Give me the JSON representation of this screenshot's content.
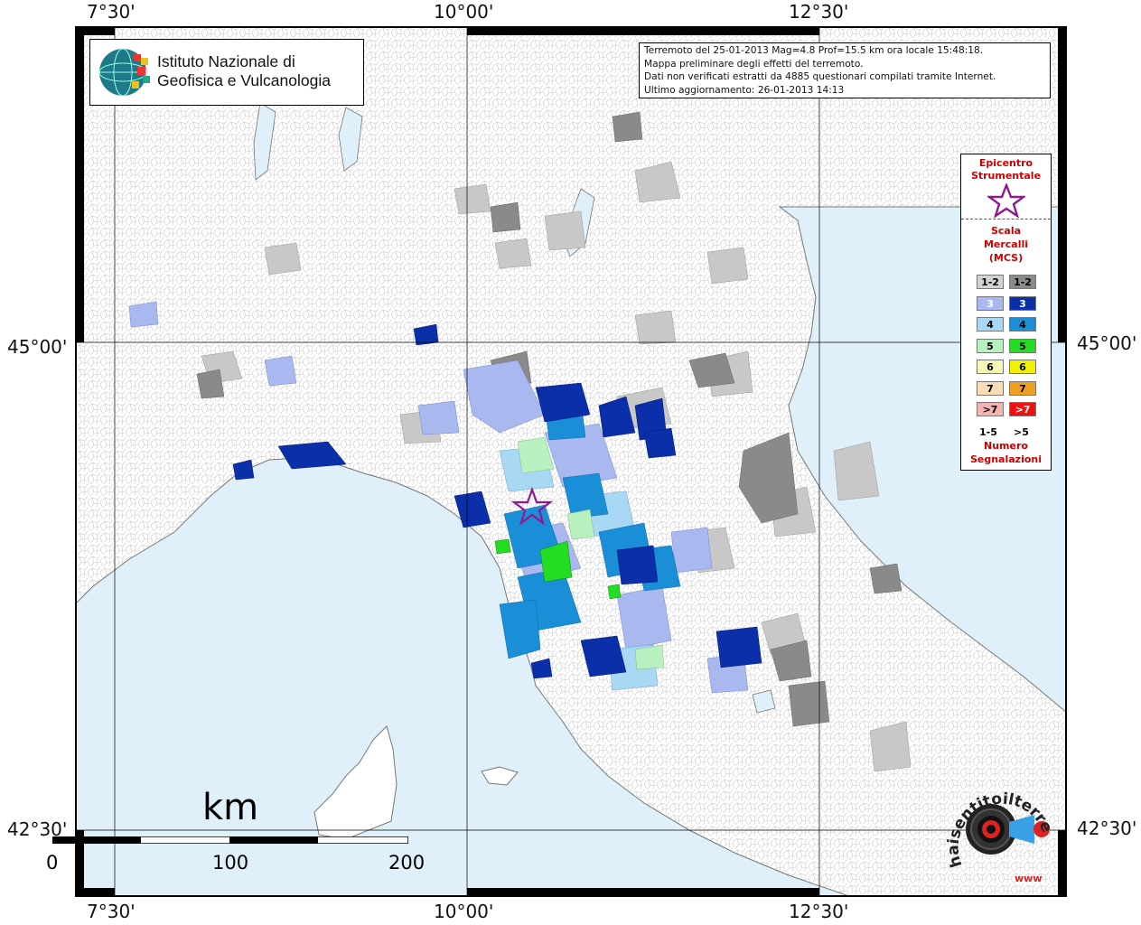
{
  "header": {
    "institute_name_line1": "Istituto Nazionale di",
    "institute_name_line2": "Geofisica e Vulcanologia"
  },
  "info_box": {
    "line1": "Terremoto del 25-01-2013 Mag=4.8 Prof=15.5 km ora locale 15:48:18.",
    "line2": "Mappa preliminare degli effetti del terremoto.",
    "line3": "Dati non verificati estratti da 4885 questionari compilati tramite Internet.",
    "line4": "Ultimo aggiornamento: 26-01-2013 14:13"
  },
  "axes": {
    "lon_labels": [
      "7°30'",
      "10°00'",
      "12°30'"
    ],
    "lat_labels": [
      "45°00'",
      "42°30'"
    ]
  },
  "legend": {
    "epicenter_title_line1": "Epicentro",
    "epicenter_title_line2": "Strumentale",
    "scale_title_line1": "Scala",
    "scale_title_line2": "Mercalli",
    "scale_title_line3": "(MCS)",
    "rows": [
      {
        "label_low": "1-2",
        "label_high": "1-2",
        "color_low": "#d3d3d3",
        "color_high": "#8a8a8a"
      },
      {
        "label_low": "3",
        "label_high": "3",
        "color_low": "#aab8f0",
        "color_high": "#0a2fa8"
      },
      {
        "label_low": "4",
        "label_high": "4",
        "color_low": "#a8d8f4",
        "color_high": "#1a8fd8"
      },
      {
        "label_low": "5",
        "label_high": "5",
        "color_low": "#b8f0c0",
        "color_high": "#22dd22"
      },
      {
        "label_low": "6",
        "label_high": "6",
        "color_low": "#f6f6b8",
        "color_high": "#f0f000"
      },
      {
        "label_low": "7",
        "label_high": "7",
        "color_low": "#f8dcb4",
        "color_high": "#f0a020"
      },
      {
        "label_low": ">7",
        "label_high": ">7",
        "color_low": "#f4b4b4",
        "color_high": "#ee1111"
      }
    ],
    "count_low": "1-5",
    "count_high": ">5",
    "count_title_line1": "Numero",
    "count_title_line2": "Segnalazioni"
  },
  "scale_bar": {
    "unit": "km",
    "ticks": [
      "0",
      "100",
      "200"
    ]
  },
  "badge": {
    "text_main": "haisentitoilterremoto.it",
    "text_www": "www"
  },
  "colors": {
    "sea": "#dff0fb",
    "epicenter_star": "#8e1a8e",
    "legend_title": "#cc0000"
  }
}
